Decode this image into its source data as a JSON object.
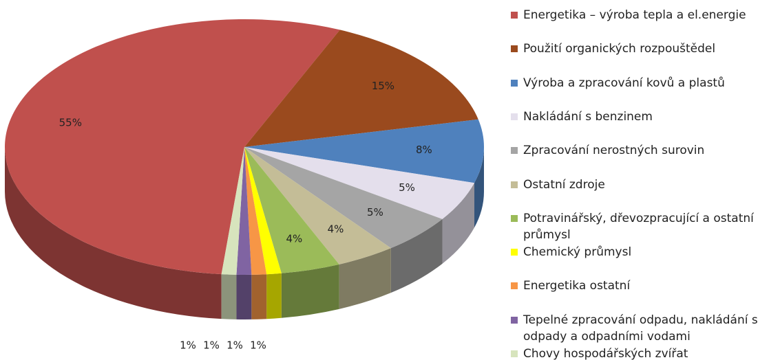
{
  "chart_data": {
    "type": "pie3d",
    "categories": [
      "Energetika – výroba tepla a el.energie",
      "Použití organických rozpouštědel",
      "Výroba a zpracování kovů a plastů",
      "Nakládání s benzinem",
      "Zpracování nerostných surovin",
      "Ostatní zdroje",
      "Potravinářský, dřevozpracující a ostatní průmysl",
      "Chemický průmysl",
      "Energetika ostatní",
      "Tepelné zpracování odpadu, nakládání s odpady a odpadními vodami",
      "Chovy hospodářských zvířat"
    ],
    "values": [
      55,
      15,
      8,
      5,
      5,
      4,
      4,
      1,
      1,
      1,
      1
    ],
    "value_labels": [
      "55%",
      "15%",
      "8%",
      "5%",
      "5%",
      "4%",
      "4%",
      "1%",
      "1%",
      "1%",
      "1%"
    ],
    "colors": [
      "#c0504d",
      "#9a4a1e",
      "#4f81bd",
      "#e4dfec",
      "#a5a5a5",
      "#c4bd97",
      "#9bbb59",
      "#ffff00",
      "#f79646",
      "#8064a2",
      "#d7e4bd"
    ],
    "legend": "right"
  }
}
